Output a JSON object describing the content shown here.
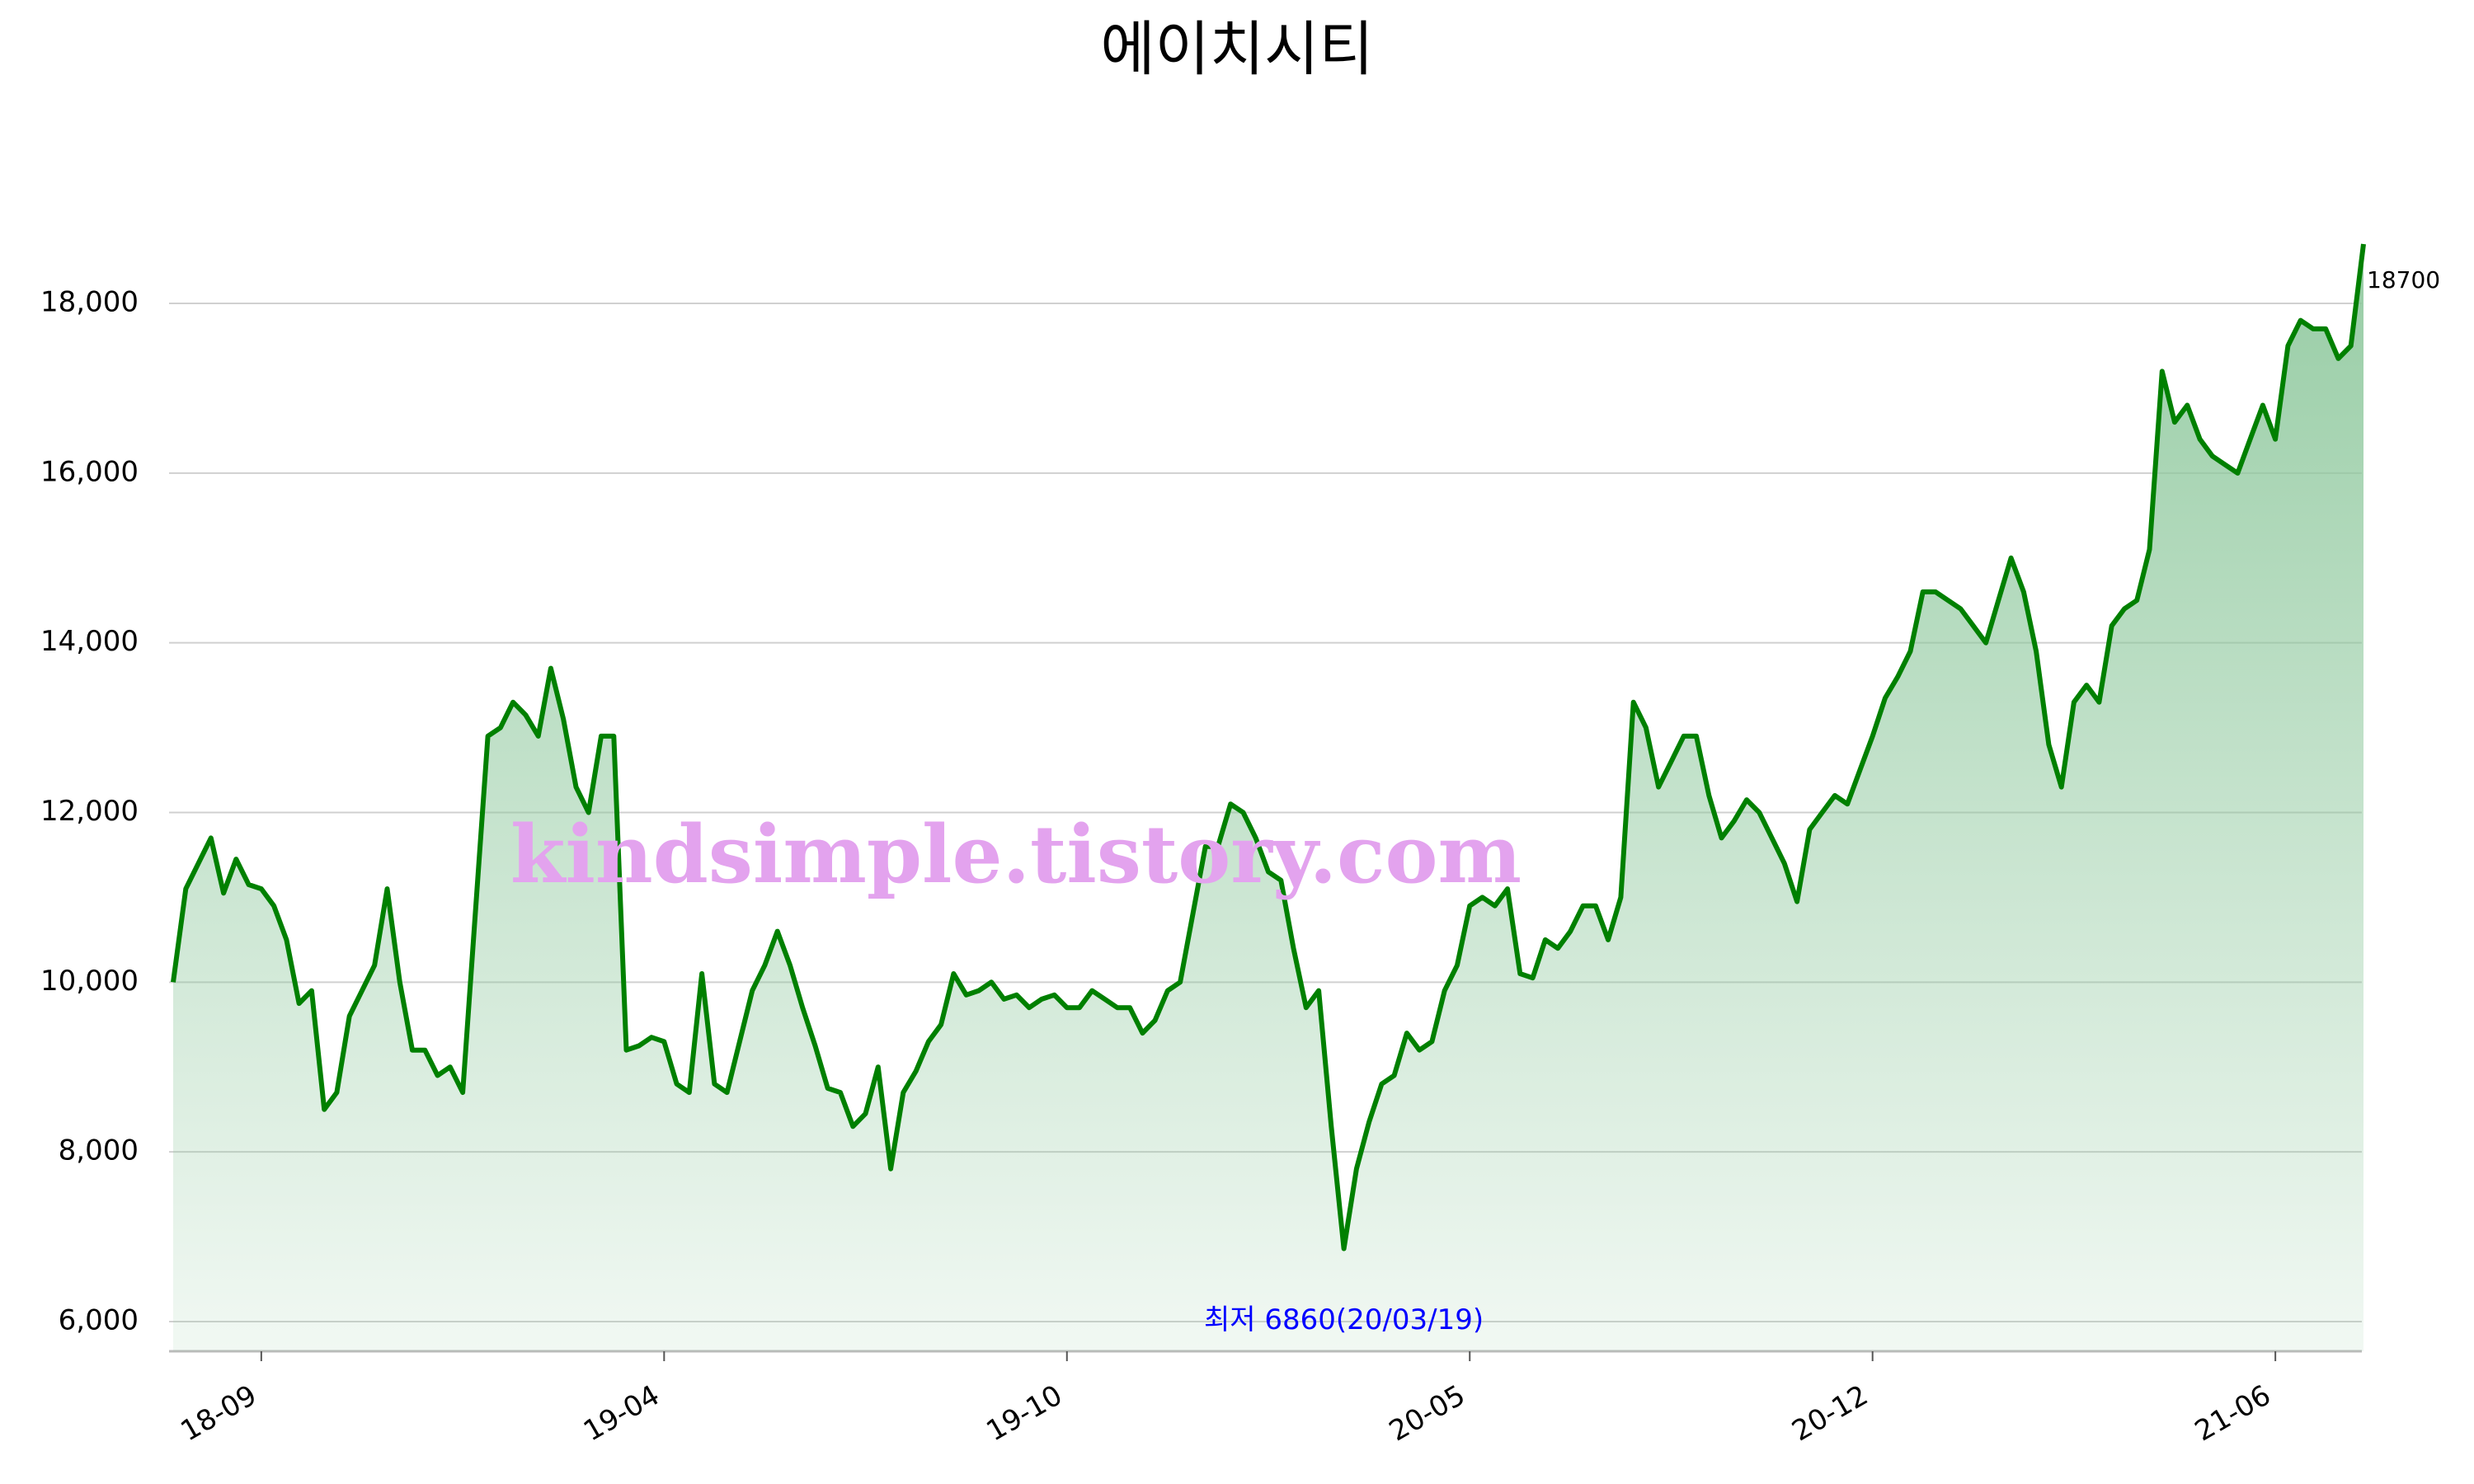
{
  "chart_data": {
    "type": "line",
    "title": "에이치시티",
    "watermark": "kindsimple.tistory.com",
    "annotation": "최저 6860(20/03/19)",
    "color": "#008000",
    "area_color": "#8cc79b",
    "annotation_color": "#0000ff",
    "watermark_color": "#e3a3ee",
    "grid": true,
    "x": [
      null,
      null,
      null,
      null,
      null,
      null,
      null,
      "18-09",
      null,
      null,
      null,
      null,
      null,
      null,
      null,
      null,
      null,
      null,
      null,
      null,
      null,
      null,
      null,
      null,
      null,
      null,
      null,
      null,
      null,
      null,
      null,
      null,
      null,
      null,
      null,
      null,
      null,
      null,
      null,
      "19-04",
      null,
      null,
      null,
      null,
      null,
      null,
      null,
      null,
      null,
      null,
      null,
      null,
      null,
      null,
      null,
      null,
      null,
      null,
      null,
      null,
      null,
      null,
      null,
      null,
      null,
      null,
      null,
      null,
      null,
      null,
      null,
      "19-10",
      null,
      null,
      null,
      null,
      null,
      null,
      null,
      null,
      null,
      null,
      null,
      null,
      null,
      null,
      null,
      null,
      null,
      null,
      null,
      null,
      null,
      null,
      null,
      null,
      null,
      null,
      null,
      null,
      null,
      null,
      null,
      "20-05",
      null,
      null,
      null,
      null,
      null,
      null,
      null,
      null,
      null,
      null,
      null,
      null,
      null,
      null,
      null,
      null,
      null,
      null,
      null,
      null,
      null,
      null,
      null,
      null,
      null,
      null,
      null,
      null,
      null,
      null,
      null,
      "20-12",
      null,
      null,
      null,
      null,
      null,
      null,
      null,
      null,
      null,
      null,
      null,
      null,
      null,
      null,
      null,
      null,
      null,
      null,
      null,
      null,
      null,
      null,
      null,
      null,
      null,
      null,
      null,
      null,
      null,
      null,
      null,
      "21-06",
      null,
      null,
      null,
      null,
      null,
      null,
      null
    ],
    "values": [
      10000,
      11100,
      11400,
      11700,
      11050,
      11450,
      11150,
      11100,
      10900,
      10500,
      9750,
      9900,
      8500,
      8700,
      9600,
      9900,
      10200,
      11100,
      10000,
      9200,
      9200,
      8900,
      9000,
      8700,
      10800,
      12900,
      13000,
      13300,
      13150,
      12900,
      13700,
      13100,
      12300,
      12000,
      12900,
      12900,
      9200,
      9250,
      9350,
      9300,
      8800,
      8700,
      10100,
      8800,
      8700,
      9300,
      9900,
      10200,
      10600,
      10200,
      9700,
      9250,
      8750,
      8700,
      8300,
      8450,
      9000,
      7800,
      8700,
      8950,
      9300,
      9500,
      10100,
      9850,
      9900,
      10000,
      9800,
      9850,
      9700,
      9800,
      9850,
      9700,
      9700,
      9900,
      9800,
      9700,
      9700,
      9400,
      9550,
      9900,
      10000,
      10800,
      11600,
      11600,
      12100,
      12000,
      11700,
      11300,
      11200,
      10400,
      9700,
      9900,
      8300,
      6860,
      7800,
      8350,
      8800,
      8900,
      9400,
      9200,
      9300,
      9900,
      10200,
      10900,
      11000,
      10900,
      11100,
      10100,
      10050,
      10500,
      10400,
      10600,
      10900,
      10900,
      10500,
      11000,
      13300,
      13000,
      12300,
      12600,
      12900,
      12900,
      12200,
      11700,
      11900,
      12150,
      12000,
      11700,
      11400,
      10950,
      11800,
      12000,
      12200,
      12100,
      12500,
      12900,
      13350,
      13600,
      13900,
      14600,
      14600,
      14500,
      14400,
      14200,
      14000,
      14500,
      15000,
      14600,
      13900,
      12800,
      12300,
      13300,
      13500,
      13300,
      14200,
      14400,
      14500,
      15100,
      17200,
      16600,
      16800,
      16400,
      16200,
      16100,
      16000,
      16400,
      16800,
      16400,
      17500,
      17800,
      17700,
      17700,
      17350,
      17500,
      18700
    ],
    "ylim": [
      5650,
      18700
    ],
    "yticks": [
      {
        "value": 6000,
        "label": "6,000"
      },
      {
        "value": 8000,
        "label": "8,000"
      },
      {
        "value": 10000,
        "label": "10,000"
      },
      {
        "value": 12000,
        "label": "12,000"
      },
      {
        "value": 14000,
        "label": "14,000"
      },
      {
        "value": 16000,
        "label": "16,000"
      },
      {
        "value": 18000,
        "label": "18,000"
      }
    ]
  }
}
